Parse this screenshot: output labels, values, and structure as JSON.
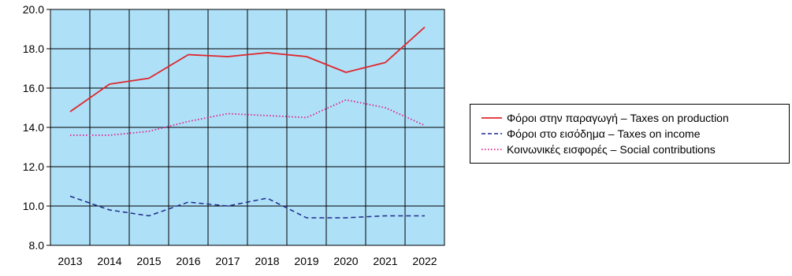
{
  "chart_data": {
    "type": "line",
    "title": "",
    "xlabel": "",
    "ylabel": "",
    "categories": [
      "2013",
      "2014",
      "2015",
      "2016",
      "2017",
      "2018",
      "2019",
      "2020",
      "2021",
      "2022"
    ],
    "ylim": [
      8.0,
      20.0
    ],
    "yticks": [
      "8.0",
      "10.0",
      "12.0",
      "14.0",
      "16.0",
      "18.0",
      "20.0"
    ],
    "grid": true,
    "background_color": "#aee0f8",
    "legend_position": "right",
    "series": [
      {
        "name": "Φόροι στην παραγωγή – Taxes on production",
        "color": "#e0262b",
        "style": "solid",
        "values": [
          14.8,
          16.2,
          16.5,
          17.7,
          17.6,
          17.8,
          17.6,
          16.8,
          17.3,
          19.1
        ]
      },
      {
        "name": "Φόροι στο εισόδημα – Taxes on income",
        "color": "#1f2a8a",
        "style": "dashed",
        "values": [
          10.5,
          9.8,
          9.5,
          10.2,
          10.0,
          10.4,
          9.4,
          9.4,
          9.5,
          9.5
        ]
      },
      {
        "name": "Κοινωνικές εισφορές – Social contributions",
        "color": "#e0218a",
        "style": "dotted",
        "values": [
          13.6,
          13.6,
          13.8,
          14.3,
          14.7,
          14.6,
          14.5,
          15.4,
          15.0,
          14.1
        ]
      }
    ]
  }
}
